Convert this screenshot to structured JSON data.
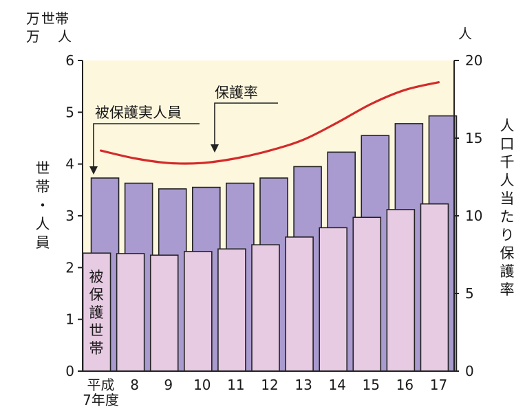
{
  "chart_data": {
    "type": "bar",
    "categories": [
      "平成7年度",
      "8",
      "9",
      "10",
      "11",
      "12",
      "13",
      "14",
      "15",
      "16",
      "17"
    ],
    "x_tick_labels": [
      [
        "平成",
        "7年度"
      ],
      [
        "8"
      ],
      [
        "9"
      ],
      [
        "10"
      ],
      [
        "11"
      ],
      [
        "12"
      ],
      [
        "13"
      ],
      [
        "14"
      ],
      [
        "15"
      ],
      [
        "16"
      ],
      [
        "17"
      ]
    ],
    "left_axis": {
      "label": "世帯・人員",
      "unit_lines": [
        [
          "万",
          "世帯"
        ],
        [
          "万",
          "人"
        ]
      ],
      "ylim": [
        0,
        6
      ],
      "ticks": [
        "0",
        "1",
        "2",
        "3",
        "4",
        "5",
        "6"
      ]
    },
    "right_axis": {
      "label": "人口千人当たり保護率",
      "unit": "人",
      "ylim": [
        0,
        20
      ],
      "ticks": [
        "0",
        "5",
        "10",
        "15",
        "20"
      ]
    },
    "series": [
      {
        "name": "被保護実人員",
        "type": "bar",
        "axis": "left",
        "color": "#a99bcf",
        "values": [
          3.73,
          3.63,
          3.52,
          3.55,
          3.63,
          3.73,
          3.95,
          4.23,
          4.55,
          4.78,
          4.93
        ]
      },
      {
        "name": "被保護世帯",
        "type": "bar",
        "axis": "left",
        "color": "#e7cbe3",
        "values": [
          2.28,
          2.27,
          2.24,
          2.31,
          2.36,
          2.44,
          2.59,
          2.77,
          2.97,
          3.12,
          3.23
        ]
      },
      {
        "name": "保護率",
        "type": "line",
        "axis": "right",
        "color": "#d42a2a",
        "values": [
          14.2,
          13.7,
          13.4,
          13.4,
          13.7,
          14.2,
          14.9,
          16.0,
          17.2,
          18.1,
          18.6
        ]
      }
    ],
    "plot_background": "#fdf7dd",
    "grid": false
  }
}
